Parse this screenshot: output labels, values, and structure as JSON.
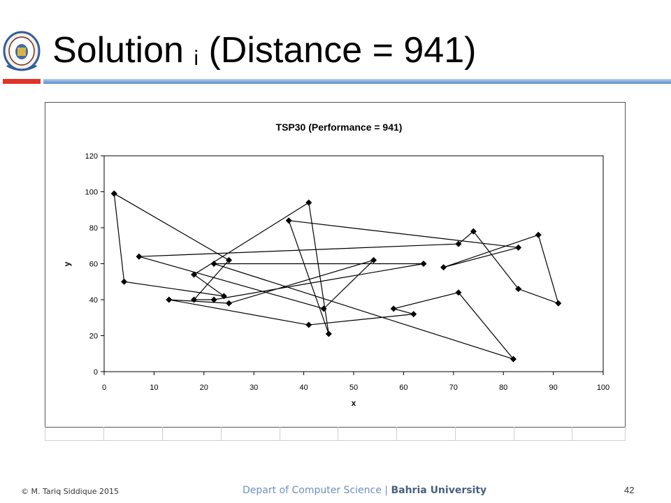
{
  "slide": {
    "title_main": "Solution ",
    "title_sub": "i",
    "title_rest": " (Distance = 941)",
    "logo_label": "Bahria University logo"
  },
  "footer": {
    "copyright": "© M. Tariq Siddique 2015",
    "department": "Depart of Computer Science",
    "separator": " | ",
    "university": "Bahria University",
    "page_number": "42"
  },
  "colors": {
    "red_bar": "#e2332a",
    "blue_bar": "#7ea8dc",
    "line": "#000000"
  },
  "chart_data": {
    "type": "line",
    "title": "TSP30 (Performance  = 941)",
    "xlabel": "x",
    "ylabel": "y",
    "xlim": [
      0,
      100
    ],
    "ylim": [
      0,
      120
    ],
    "xticks": [
      0,
      10,
      20,
      30,
      40,
      50,
      60,
      70,
      80,
      90,
      100
    ],
    "yticks": [
      0,
      20,
      40,
      60,
      80,
      100,
      120
    ],
    "grid": false,
    "legend": "none",
    "x": [
      2,
      4,
      24,
      18,
      41,
      45,
      37,
      83,
      68,
      87,
      91,
      83,
      74,
      71,
      7,
      44,
      54,
      25,
      13,
      41,
      62,
      58,
      71,
      82,
      22,
      64,
      22,
      18,
      25,
      2
    ],
    "y": [
      99,
      50,
      42,
      54,
      94,
      21,
      84,
      69,
      58,
      76,
      38,
      46,
      78,
      71,
      64,
      35,
      62,
      38,
      40,
      26,
      32,
      35,
      44,
      7,
      60,
      60,
      40,
      40,
      62,
      99
    ]
  }
}
